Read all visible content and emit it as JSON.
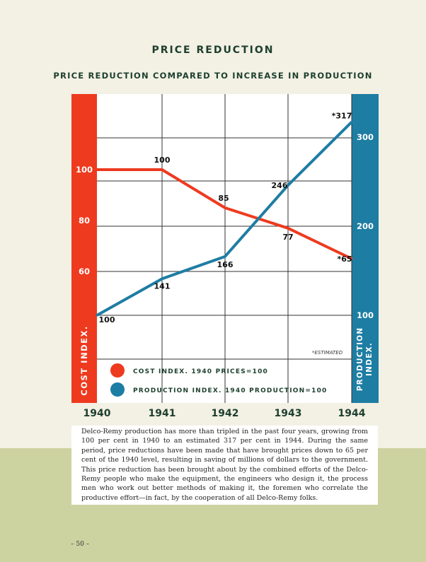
{
  "header": {
    "title": "PRICE REDUCTION",
    "subtitle": "PRICE REDUCTION COMPARED TO INCREASE IN PRODUCTION"
  },
  "colors": {
    "cost": "#ee3a1f",
    "production": "#1e7da3",
    "text": "#1c3f2e"
  },
  "chart_data": {
    "type": "line",
    "title": "PRICE REDUCTION COMPARED TO INCREASE IN PRODUCTION",
    "x": [
      1940,
      1941,
      1942,
      1943,
      1944
    ],
    "x_labels": [
      "1940",
      "1941",
      "1942",
      "1943",
      "1944"
    ],
    "grid": true,
    "left_axis": {
      "label": "COST INDEX.",
      "ticks": [
        60,
        80,
        100
      ],
      "tick_labels": [
        "60",
        "80",
        "100"
      ]
    },
    "right_axis": {
      "label": "PRODUCTION INDEX.",
      "ticks": [
        100,
        200,
        300
      ],
      "tick_labels": [
        "100",
        "200",
        "300"
      ]
    },
    "series": [
      {
        "name": "COST INDEX. 1940 PRICES=100",
        "axis": "left",
        "values": [
          100,
          100,
          85,
          77,
          65
        ],
        "labels": [
          "",
          "100",
          "85",
          "77",
          "*65"
        ]
      },
      {
        "name": "PRODUCTION INDEX. 1940 PRODUCTION=100",
        "axis": "right",
        "values": [
          100,
          141,
          166,
          246,
          317
        ],
        "labels": [
          "100",
          "141",
          "166",
          "246",
          "*317"
        ]
      }
    ],
    "legend_position": "bottom-left",
    "annotation": "*ESTIMATED"
  },
  "caption": "Delco-Remy production has more than tripled in the past four years, growing from 100 per cent in 1940 to an estimated 317 per cent in 1944. During the same period, price reductions have been made that have brought prices down to 65 per cent of the 1940 level, resulting in saving of millions of dollars to the government. This price reduction has been brought about by the combined efforts of the Delco-Remy people who make the equipment, the engineers who design it, the process men who work out better methods of making it, the foremen who correlate the productive effort—in fact, by the cooperation of all Delco-Remy folks.",
  "page_number": "– 50 –"
}
